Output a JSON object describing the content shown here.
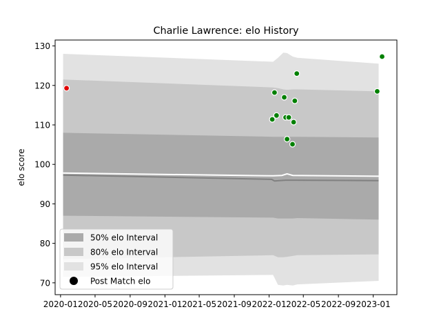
{
  "chart_data": {
    "type": "scatter",
    "title": "Charlie Lawrence: elo History",
    "xlabel": "",
    "ylabel": "elo score",
    "x_range": [
      "2019-12-13",
      "2023-03-25"
    ],
    "ylim": [
      67,
      131.5
    ],
    "x_ticks": [
      "2020-01",
      "2020-05",
      "2020-09",
      "2021-01",
      "2021-05",
      "2021-09",
      "2022-01",
      "2022-05",
      "2022-09",
      "2023-01"
    ],
    "y_ticks": [
      70,
      80,
      90,
      100,
      110,
      120,
      130
    ],
    "grid": false,
    "legend_position": "lower-left",
    "legend": [
      {
        "label": "50% elo Interval",
        "kind": "band",
        "color": "#aaaaaa"
      },
      {
        "label": "80% elo Interval",
        "kind": "band",
        "color": "#c8c8c8"
      },
      {
        "label": "95% elo Interval",
        "kind": "band",
        "color": "#e2e2e2"
      },
      {
        "label": "Post Match elo",
        "kind": "marker",
        "color": "#000000"
      }
    ],
    "bands": {
      "x": [
        "2020-01-10",
        "2022-01-15",
        "2022-02-01",
        "2022-02-20",
        "2022-03-05",
        "2022-03-25",
        "2022-04-10",
        "2023-01-20"
      ],
      "p95": {
        "lower": [
          71.5,
          72.0,
          69.5,
          69.3,
          69.5,
          69.3,
          69.6,
          70.5
        ],
        "upper": [
          128.0,
          126.0,
          127.0,
          128.3,
          128.2,
          127.3,
          127.0,
          125.5
        ]
      },
      "p80": {
        "lower": [
          76.0,
          77.0,
          76.5,
          76.5,
          76.6,
          76.8,
          77.0,
          77.2
        ],
        "upper": [
          121.5,
          119.5,
          119.3,
          119.0,
          118.9,
          119.0,
          119.0,
          118.5
        ]
      },
      "p50": {
        "lower": [
          87.0,
          86.5,
          86.3,
          86.3,
          86.3,
          86.3,
          86.4,
          86.0
        ],
        "upper": [
          108.0,
          107.0,
          107.0,
          107.0,
          107.0,
          107.0,
          107.0,
          106.8
        ]
      }
    },
    "mean_line": {
      "x": [
        "2020-01-10",
        "2022-01-10",
        "2022-01-20",
        "2022-02-05",
        "2022-03-01",
        "2022-03-20",
        "2023-01-20"
      ],
      "y": [
        97.3,
        96.2,
        95.8,
        95.9,
        96.0,
        96.0,
        95.9
      ],
      "color": "#808080"
    },
    "upper_line": {
      "x": [
        "2020-01-10",
        "2022-01-15",
        "2022-02-15",
        "2022-03-05",
        "2022-03-25",
        "2023-01-20"
      ],
      "y": [
        97.8,
        97.1,
        97.2,
        97.6,
        97.2,
        97.0
      ],
      "color": "#ffffff"
    },
    "points": [
      {
        "x": "2020-01-22",
        "y": 119.3,
        "color": "#e00000"
      },
      {
        "x": "2022-01-12",
        "y": 111.4,
        "color": "#008000"
      },
      {
        "x": "2022-01-20",
        "y": 118.2,
        "color": "#008000"
      },
      {
        "x": "2022-01-27",
        "y": 112.4,
        "color": "#008000"
      },
      {
        "x": "2022-02-23",
        "y": 117.0,
        "color": "#008000"
      },
      {
        "x": "2022-02-28",
        "y": 111.9,
        "color": "#008000"
      },
      {
        "x": "2022-03-05",
        "y": 106.4,
        "color": "#008000"
      },
      {
        "x": "2022-03-11",
        "y": 111.9,
        "color": "#008000"
      },
      {
        "x": "2022-03-24",
        "y": 105.1,
        "color": "#008000"
      },
      {
        "x": "2022-03-28",
        "y": 110.7,
        "color": "#008000"
      },
      {
        "x": "2022-04-01",
        "y": 116.1,
        "color": "#008000"
      },
      {
        "x": "2022-04-08",
        "y": 123.0,
        "color": "#008000"
      },
      {
        "x": "2023-01-15",
        "y": 118.5,
        "color": "#008000"
      },
      {
        "x": "2023-02-01",
        "y": 127.3,
        "color": "#008000"
      }
    ]
  }
}
